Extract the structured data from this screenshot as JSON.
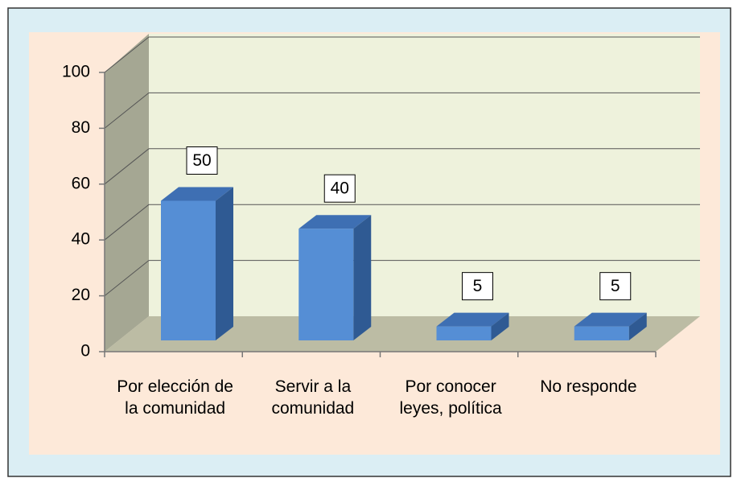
{
  "chart_data": {
    "type": "bar3d",
    "categories": [
      "Por elección de la comunidad",
      "Servir a la comunidad",
      "Por conocer leyes, política",
      "No responde"
    ],
    "values": [
      50,
      40,
      5,
      5
    ],
    "color": "#558ed5",
    "ylim": [
      0,
      100
    ],
    "yticks": [
      0,
      20,
      40,
      60,
      80,
      100
    ],
    "grid": true
  }
}
